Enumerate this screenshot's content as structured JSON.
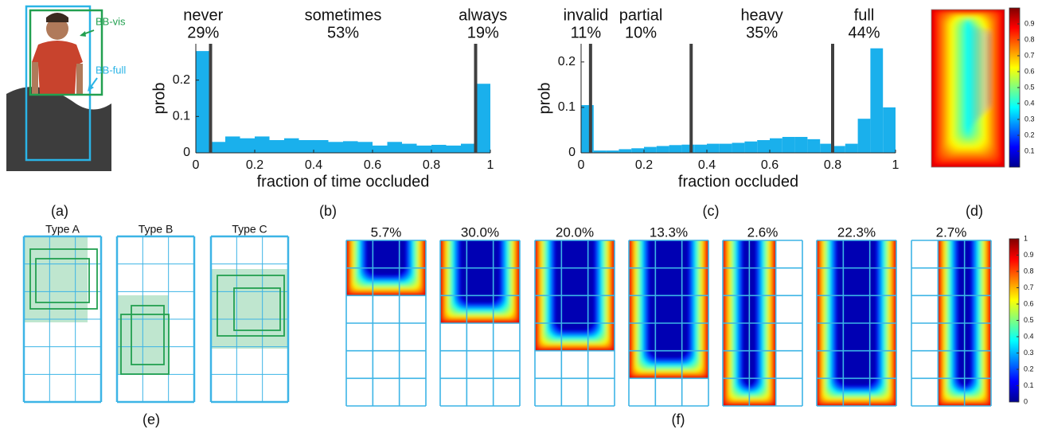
{
  "panel_labels": [
    "(a)",
    "(b)",
    "(c)",
    "(d)",
    "(e)",
    "(f)"
  ],
  "figure_a": {
    "labels": [
      "BB-vis",
      "BB-full"
    ]
  },
  "figure_e": {
    "types": [
      "Type A",
      "Type B",
      "Type C"
    ]
  },
  "chart_data": [
    {
      "type": "histogram",
      "xlabel": "fraction of time occluded",
      "ylabel": "prob",
      "color": "#1ab0ec",
      "bins": [
        0,
        0.05,
        0.1,
        0.15,
        0.2,
        0.25,
        0.3,
        0.35,
        0.4,
        0.45,
        0.5,
        0.55,
        0.6,
        0.65,
        0.7,
        0.75,
        0.8,
        0.85,
        0.9,
        0.95,
        1
      ],
      "values": [
        0.28,
        0.03,
        0.045,
        0.04,
        0.045,
        0.035,
        0.04,
        0.035,
        0.035,
        0.03,
        0.032,
        0.03,
        0.02,
        0.03,
        0.025,
        0.02,
        0.022,
        0.02,
        0.025,
        0.19
      ],
      "xlim": [
        0,
        1
      ],
      "xticks": [
        0,
        0.2,
        0.4,
        0.6,
        0.8,
        1
      ],
      "ylim": [
        0,
        0.3
      ],
      "yticks": [
        0,
        0.1,
        0.2
      ],
      "thresholds": [
        0.05,
        0.95
      ],
      "threshold_color": "#404040",
      "segments": [
        "never",
        "sometimes",
        "always"
      ],
      "segment_shares": [
        29,
        53,
        19
      ],
      "segment_share_labels": [
        "29%",
        "53%",
        "19%"
      ]
    },
    {
      "type": "histogram",
      "xlabel": "fraction occluded",
      "ylabel": "prob",
      "color": "#1ab0ec",
      "bins": [
        0,
        0.04,
        0.08,
        0.12,
        0.16,
        0.2,
        0.24,
        0.28,
        0.32,
        0.36,
        0.4,
        0.44,
        0.48,
        0.52,
        0.56,
        0.6,
        0.64,
        0.68,
        0.72,
        0.76,
        0.8,
        0.84,
        0.88,
        0.92,
        0.96,
        1
      ],
      "values": [
        0.105,
        0.005,
        0.005,
        0.008,
        0.01,
        0.013,
        0.015,
        0.017,
        0.018,
        0.018,
        0.02,
        0.02,
        0.022,
        0.025,
        0.028,
        0.032,
        0.035,
        0.035,
        0.03,
        0.02,
        0.015,
        0.02,
        0.075,
        0.23,
        0.1
      ],
      "xlim": [
        0,
        1
      ],
      "xticks": [
        0,
        0.2,
        0.4,
        0.6,
        0.8,
        1
      ],
      "ylim": [
        0,
        0.24
      ],
      "yticks": [
        0,
        0.1,
        0.2
      ],
      "thresholds": [
        0.03,
        0.35,
        0.8
      ],
      "threshold_color": "#404040",
      "segments": [
        "invalid",
        "partial",
        "heavy",
        "full"
      ],
      "segment_shares": [
        11,
        10,
        35,
        44
      ],
      "segment_share_labels": [
        "11%",
        "10%",
        "35%",
        "44%"
      ]
    },
    {
      "type": "heatmap",
      "clim": [
        0,
        1
      ],
      "cticks": [
        0.1,
        0.2,
        0.3,
        0.4,
        0.5,
        0.6,
        0.7,
        0.8,
        0.9
      ]
    },
    {
      "type": "heatmap",
      "titles": [
        5.7,
        30.0,
        20.0,
        13.3,
        2.6,
        22.3,
        2.7
      ],
      "title_labels": [
        "5.7%",
        "30.0%",
        "20.0%",
        "13.3%",
        "2.6%",
        "22.3%",
        "2.7%"
      ],
      "clim": [
        0,
        1
      ],
      "cticks": [
        0,
        0.1,
        0.2,
        0.3,
        0.4,
        0.5,
        0.6,
        0.7,
        0.8,
        0.9,
        1
      ]
    }
  ]
}
